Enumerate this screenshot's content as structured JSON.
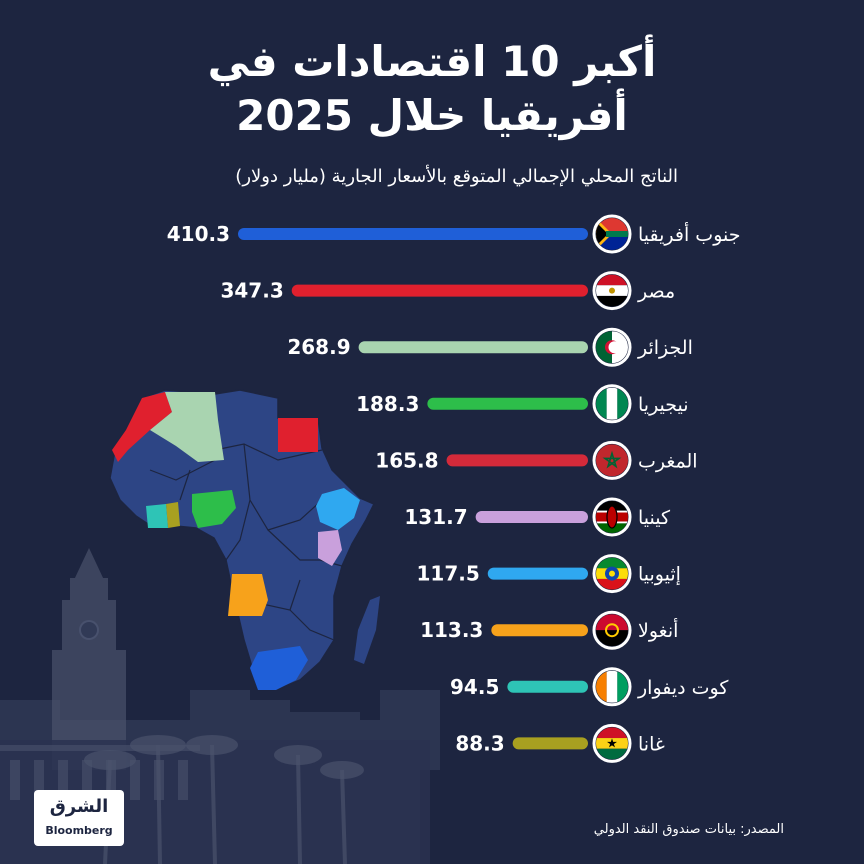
{
  "header": {
    "title_line1": "أكبر 10 اقتصادات في",
    "title_line2": "أفريقيا خلال 2025"
  },
  "footer": {
    "source": "المصدر: بيانات صندوق النقد الدولي",
    "logo_arabic": "الشرق",
    "logo_english": "Bloomberg"
  },
  "chart_data": {
    "type": "bar",
    "orientation": "horizontal",
    "title": "أكبر 10 اقتصادات في أفريقيا خلال 2025",
    "subtitle": "الناتج المحلي الإجمالي المتوقع بالأسعار الجارية (مليار دولار)",
    "categories": [
      "جنوب أفريقيا",
      "مصر",
      "الجزائر",
      "نيجيريا",
      "المغرب",
      "كينيا",
      "إثيوبيا",
      "أنغولا",
      "كوت ديفوار",
      "غانا"
    ],
    "values": [
      410.3,
      347.3,
      268.9,
      188.3,
      165.8,
      131.7,
      117.5,
      113.3,
      94.5,
      88.3
    ],
    "value_labels": [
      "410.3",
      "347.3",
      "268.9",
      "188.3",
      "165.8",
      "131.7",
      "117.5",
      "113.3",
      "94.5",
      "88.3"
    ],
    "colors": [
      "#1f5fd8",
      "#e0202e",
      "#a9d4b0",
      "#2dbe4a",
      "#d42a3a",
      "#c9a0dc",
      "#2fa8f0",
      "#f7a21b",
      "#2ec4b6",
      "#a8a020"
    ],
    "flags": [
      "south-africa-flag",
      "egypt-flag",
      "algeria-flag",
      "nigeria-flag",
      "morocco-flag",
      "kenya-flag",
      "ethiopia-flag",
      "angola-flag",
      "cote-divoire-flag",
      "ghana-flag"
    ],
    "bar_direction": "right-to-left",
    "grid": false,
    "legend": "none"
  },
  "map": {
    "other_countries_color": "#2d4585",
    "border_color": "#1d2540"
  }
}
